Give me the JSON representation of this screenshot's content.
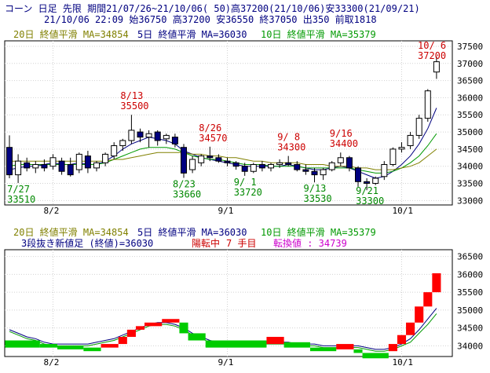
{
  "header": {
    "line1": "コーン 日足 先限 期間21/07/26~21/10/06( 50)高37200(21/10/06)安33300(21/09/21)",
    "line2": "21/10/06 22:09 始36750 高37200 安36550 終37050 出350 前取1818"
  },
  "legend": {
    "ma20": "20日 終値平滑 MA=34854",
    "ma5": "5日 終値平滑 MA=36030",
    "ma10": "10日 終値平滑 MA=35379",
    "threeline": "3段抜き新値足 (終値)=36030",
    "turn_state": "陽転中",
    "turn_count": "7 手目",
    "turn_value": "転換値 : 34739"
  },
  "colors": {
    "background": "#ffffff",
    "grid": "#d2d2d2",
    "candle_outline": "#000000",
    "bear_body": "#000080",
    "bull_body": "#ffffff",
    "ma5": "#000080",
    "ma10": "#009900",
    "ma20": "#808000",
    "high_annotation": "#cc0000",
    "low_annotation": "#008800",
    "brick_up": "#ff0000",
    "brick_down": "#00cc00",
    "legend_ma20": "#808000",
    "legend_ma5": "#000080",
    "legend_ma10": "#009900",
    "legend_turn": "#cc0000",
    "legend_value": "#cc00cc"
  },
  "chart_data": [
    {
      "type": "candlestick",
      "y_ticks": [
        33000,
        33500,
        34000,
        34500,
        35000,
        35500,
        36000,
        36500,
        37000,
        37500
      ],
      "ylim": [
        32870,
        37660
      ],
      "x_labels": [
        {
          "index": 5,
          "label": "8/2"
        },
        {
          "index": 25,
          "label": "9/1"
        },
        {
          "index": 45,
          "label": "10/1"
        }
      ],
      "grid": true,
      "candles": [
        {
          "date": "21/07/26",
          "o": 34550,
          "h": 34900,
          "l": 33650,
          "c": 33750
        },
        {
          "date": "21/07/27",
          "o": 33750,
          "h": 34350,
          "l": 33510,
          "c": 34150
        },
        {
          "date": "21/07/28",
          "o": 34100,
          "h": 34250,
          "l": 33850,
          "c": 33950
        },
        {
          "date": "21/07/29",
          "o": 33950,
          "h": 34150,
          "l": 33800,
          "c": 34050
        },
        {
          "date": "21/07/30",
          "o": 34050,
          "h": 34200,
          "l": 33850,
          "c": 33950
        },
        {
          "date": "21/08/02",
          "o": 34000,
          "h": 34350,
          "l": 33900,
          "c": 34250
        },
        {
          "date": "21/08/03",
          "o": 34150,
          "h": 34250,
          "l": 33750,
          "c": 33850
        },
        {
          "date": "21/08/04",
          "o": 34050,
          "h": 34250,
          "l": 33700,
          "c": 33750
        },
        {
          "date": "21/08/05",
          "o": 33900,
          "h": 34400,
          "l": 33800,
          "c": 34350
        },
        {
          "date": "21/08/06",
          "o": 34300,
          "h": 34450,
          "l": 33800,
          "c": 33950
        },
        {
          "date": "21/08/09",
          "o": 33950,
          "h": 34150,
          "l": 33850,
          "c": 34100
        },
        {
          "date": "21/08/10",
          "o": 34100,
          "h": 34400,
          "l": 34000,
          "c": 34350
        },
        {
          "date": "21/08/11",
          "o": 34300,
          "h": 34700,
          "l": 34200,
          "c": 34600
        },
        {
          "date": "21/08/12",
          "o": 34600,
          "h": 34800,
          "l": 34450,
          "c": 34750
        },
        {
          "date": "21/08/13",
          "o": 34750,
          "h": 35500,
          "l": 34650,
          "c": 35050
        },
        {
          "date": "21/08/16",
          "o": 35000,
          "h": 35100,
          "l": 34700,
          "c": 34850
        },
        {
          "date": "21/08/17",
          "o": 34850,
          "h": 35050,
          "l": 34550,
          "c": 34950
        },
        {
          "date": "21/08/18",
          "o": 35000,
          "h": 35050,
          "l": 34600,
          "c": 34750
        },
        {
          "date": "21/08/19",
          "o": 34800,
          "h": 34950,
          "l": 34650,
          "c": 34900
        },
        {
          "date": "21/08/20",
          "o": 34850,
          "h": 34950,
          "l": 34550,
          "c": 34650
        },
        {
          "date": "21/08/23",
          "o": 34550,
          "h": 34650,
          "l": 33660,
          "c": 33800
        },
        {
          "date": "21/08/24",
          "o": 33900,
          "h": 34300,
          "l": 33800,
          "c": 34200
        },
        {
          "date": "21/08/25",
          "o": 34100,
          "h": 34350,
          "l": 34000,
          "c": 34300
        },
        {
          "date": "21/08/26",
          "o": 34300,
          "h": 34570,
          "l": 34150,
          "c": 34250
        },
        {
          "date": "21/08/27",
          "o": 34250,
          "h": 34350,
          "l": 34100,
          "c": 34150
        },
        {
          "date": "21/08/30",
          "o": 34150,
          "h": 34250,
          "l": 34000,
          "c": 34100
        },
        {
          "date": "21/08/31",
          "o": 34100,
          "h": 34150,
          "l": 33900,
          "c": 34000
        },
        {
          "date": "21/09/01",
          "o": 34000,
          "h": 34100,
          "l": 33720,
          "c": 33850
        },
        {
          "date": "21/09/02",
          "o": 33850,
          "h": 34100,
          "l": 33800,
          "c": 34050
        },
        {
          "date": "21/09/03",
          "o": 34050,
          "h": 34150,
          "l": 33850,
          "c": 33950
        },
        {
          "date": "21/09/06",
          "o": 33950,
          "h": 34100,
          "l": 33850,
          "c": 34050
        },
        {
          "date": "21/09/07",
          "o": 34050,
          "h": 34200,
          "l": 33950,
          "c": 34100
        },
        {
          "date": "21/09/08",
          "o": 34100,
          "h": 34300,
          "l": 34000,
          "c": 34050
        },
        {
          "date": "21/09/09",
          "o": 34050,
          "h": 34150,
          "l": 33850,
          "c": 33900
        },
        {
          "date": "21/09/10",
          "o": 33900,
          "h": 34050,
          "l": 33750,
          "c": 33850
        },
        {
          "date": "21/09/13",
          "o": 33850,
          "h": 33950,
          "l": 33530,
          "c": 33750
        },
        {
          "date": "21/09/14",
          "o": 33750,
          "h": 33950,
          "l": 33600,
          "c": 33900
        },
        {
          "date": "21/09/15",
          "o": 33900,
          "h": 34150,
          "l": 33850,
          "c": 34100
        },
        {
          "date": "21/09/16",
          "o": 34100,
          "h": 34400,
          "l": 34000,
          "c": 34250
        },
        {
          "date": "21/09/17",
          "o": 34250,
          "h": 34300,
          "l": 33850,
          "c": 33950
        },
        {
          "date": "21/09/20",
          "o": 33950,
          "h": 34000,
          "l": 33400,
          "c": 33550
        },
        {
          "date": "21/09/21",
          "o": 33550,
          "h": 33650,
          "l": 33300,
          "c": 33500
        },
        {
          "date": "21/09/22",
          "o": 33500,
          "h": 33700,
          "l": 33450,
          "c": 33650
        },
        {
          "date": "21/09/24",
          "o": 33700,
          "h": 34150,
          "l": 33600,
          "c": 34050
        },
        {
          "date": "21/09/27",
          "o": 34050,
          "h": 34550,
          "l": 34000,
          "c": 34500
        },
        {
          "date": "21/09/28",
          "o": 34500,
          "h": 34700,
          "l": 34400,
          "c": 34550
        },
        {
          "date": "21/09/29",
          "o": 34600,
          "h": 35000,
          "l": 34500,
          "c": 34900
        },
        {
          "date": "21/09/30",
          "o": 34900,
          "h": 35500,
          "l": 34800,
          "c": 35400
        },
        {
          "date": "21/10/01",
          "o": 35400,
          "h": 36250,
          "l": 35300,
          "c": 36200
        },
        {
          "date": "21/10/06",
          "o": 36750,
          "h": 37200,
          "l": 36550,
          "c": 37050
        }
      ],
      "moving_averages": [
        {
          "name": "5日 終値平滑",
          "color": "#000080",
          "values": [
            33900,
            33950,
            34000,
            34000,
            34050,
            34100,
            34050,
            34050,
            34100,
            34050,
            34050,
            34150,
            34300,
            34500,
            34650,
            34750,
            34850,
            34800,
            34750,
            34650,
            34450,
            34350,
            34250,
            34200,
            34150,
            34100,
            34050,
            34000,
            34000,
            34000,
            34000,
            34000,
            34050,
            34000,
            33950,
            33900,
            33900,
            33950,
            34000,
            33950,
            33850,
            33750,
            33650,
            33700,
            33850,
            34050,
            34300,
            34650,
            35100,
            35700
          ]
        },
        {
          "name": "10日 終値平滑",
          "color": "#009900",
          "values": [
            34000,
            34050,
            34050,
            34050,
            34050,
            34050,
            34050,
            34050,
            34050,
            34050,
            34050,
            34100,
            34200,
            34300,
            34400,
            34500,
            34550,
            34550,
            34550,
            34500,
            34400,
            34300,
            34250,
            34200,
            34200,
            34150,
            34100,
            34050,
            34050,
            34050,
            34000,
            34000,
            34000,
            34000,
            33950,
            33950,
            33950,
            33950,
            33950,
            33950,
            33900,
            33850,
            33800,
            33800,
            33850,
            33950,
            34100,
            34300,
            34600,
            34950
          ]
        },
        {
          "name": "20日 終値平滑",
          "color": "#808000",
          "values": [
            34150,
            34150,
            34150,
            34150,
            34150,
            34150,
            34150,
            34150,
            34150,
            34150,
            34150,
            34150,
            34200,
            34200,
            34250,
            34300,
            34350,
            34400,
            34400,
            34400,
            34400,
            34350,
            34350,
            34300,
            34300,
            34250,
            34250,
            34200,
            34150,
            34150,
            34100,
            34100,
            34100,
            34100,
            34050,
            34050,
            34050,
            34000,
            34000,
            34000,
            33950,
            33950,
            33900,
            33900,
            33900,
            33950,
            34000,
            34100,
            34300,
            34500
          ]
        }
      ],
      "annotations": [
        {
          "index": 1,
          "kind": "low",
          "text": "7/27\n33510"
        },
        {
          "index": 14,
          "kind": "high",
          "text": "8/13\n35500"
        },
        {
          "index": 20,
          "kind": "low",
          "text": "8/23\n33660"
        },
        {
          "index": 23,
          "kind": "high",
          "text": "8/26\n34570"
        },
        {
          "index": 27,
          "kind": "low",
          "text": "9/ 1\n33720"
        },
        {
          "index": 32,
          "kind": "high",
          "text": "9/ 8\n34300"
        },
        {
          "index": 35,
          "kind": "low",
          "text": "9/13\n33530"
        },
        {
          "index": 38,
          "kind": "high",
          "text": "9/16\n34400"
        },
        {
          "index": 41,
          "kind": "low",
          "text": "9/21\n33300"
        },
        {
          "index": 49,
          "kind": "high",
          "text": "10/ 6\n37200"
        }
      ]
    },
    {
      "type": "three_line_break",
      "y_ticks": [
        34000,
        34500,
        35000,
        35500,
        36000,
        36500
      ],
      "ylim": [
        33700,
        36690
      ],
      "grid": true,
      "bricks": [
        {
          "start": 0,
          "end": 4,
          "dir": "down",
          "from": 34150,
          "to": 33950
        },
        {
          "start": 4,
          "end": 6,
          "dir": "down",
          "from": 34050,
          "to": 33950
        },
        {
          "start": 6,
          "end": 9,
          "dir": "down",
          "from": 34000,
          "to": 33900
        },
        {
          "start": 9,
          "end": 11,
          "dir": "down",
          "from": 33950,
          "to": 33850
        },
        {
          "start": 11,
          "end": 13,
          "dir": "up",
          "from": 33950,
          "to": 34050
        },
        {
          "start": 13,
          "end": 14,
          "dir": "up",
          "from": 34050,
          "to": 34250
        },
        {
          "start": 14,
          "end": 15,
          "dir": "up",
          "from": 34250,
          "to": 34450
        },
        {
          "start": 15,
          "end": 16,
          "dir": "up",
          "from": 34450,
          "to": 34550
        },
        {
          "start": 16,
          "end": 18,
          "dir": "up",
          "from": 34550,
          "to": 34650
        },
        {
          "start": 18,
          "end": 20,
          "dir": "up",
          "from": 34650,
          "to": 34750
        },
        {
          "start": 20,
          "end": 21,
          "dir": "down",
          "from": 34650,
          "to": 34350
        },
        {
          "start": 21,
          "end": 23,
          "dir": "down",
          "from": 34350,
          "to": 34150
        },
        {
          "start": 23,
          "end": 30,
          "dir": "down",
          "from": 34150,
          "to": 33950
        },
        {
          "start": 30,
          "end": 32,
          "dir": "up",
          "from": 34050,
          "to": 34250
        },
        {
          "start": 32,
          "end": 35,
          "dir": "down",
          "from": 34100,
          "to": 33950
        },
        {
          "start": 35,
          "end": 38,
          "dir": "down",
          "from": 33950,
          "to": 33850
        },
        {
          "start": 38,
          "end": 40,
          "dir": "up",
          "from": 33900,
          "to": 34050
        },
        {
          "start": 40,
          "end": 41,
          "dir": "down",
          "from": 33900,
          "to": 33800
        },
        {
          "start": 41,
          "end": 44,
          "dir": "down",
          "from": 33800,
          "to": 33650
        },
        {
          "start": 44,
          "end": 45,
          "dir": "up",
          "from": 33850,
          "to": 34050
        },
        {
          "start": 45,
          "end": 46,
          "dir": "up",
          "from": 34050,
          "to": 34300
        },
        {
          "start": 46,
          "end": 47,
          "dir": "up",
          "from": 34300,
          "to": 34650
        },
        {
          "start": 47,
          "end": 48,
          "dir": "up",
          "from": 34650,
          "to": 35100
        },
        {
          "start": 48,
          "end": 49,
          "dir": "up",
          "from": 35100,
          "to": 35500
        },
        {
          "start": 49,
          "end": 50,
          "dir": "up",
          "from": 35500,
          "to": 36030
        }
      ],
      "lines": [
        {
          "name": "upper",
          "color": "#000080",
          "values": [
            34450,
            34350,
            34250,
            34200,
            34100,
            34050,
            34050,
            34050,
            34050,
            34050,
            34100,
            34150,
            34200,
            34300,
            34400,
            34500,
            34600,
            34650,
            34650,
            34600,
            34500,
            34350,
            34250,
            34150,
            34100,
            34100,
            34100,
            34100,
            34100,
            34100,
            34100,
            34100,
            34100,
            34050,
            34050,
            34050,
            34000,
            34000,
            34000,
            34000,
            34000,
            33950,
            33900,
            33900,
            33950,
            34050,
            34200,
            34450,
            34750,
            35050
          ]
        },
        {
          "name": "lower",
          "color": "#009900",
          "values": [
            34400,
            34300,
            34200,
            34150,
            34050,
            34000,
            34000,
            34000,
            34000,
            34000,
            34050,
            34100,
            34150,
            34250,
            34350,
            34450,
            34550,
            34600,
            34600,
            34550,
            34450,
            34300,
            34200,
            34100,
            34050,
            34050,
            34050,
            34050,
            34050,
            34050,
            34050,
            34050,
            34050,
            34000,
            34000,
            34000,
            33950,
            33950,
            33950,
            33950,
            33950,
            33900,
            33850,
            33850,
            33900,
            34000,
            34100,
            34350,
            34600,
            34900
          ]
        }
      ]
    }
  ]
}
